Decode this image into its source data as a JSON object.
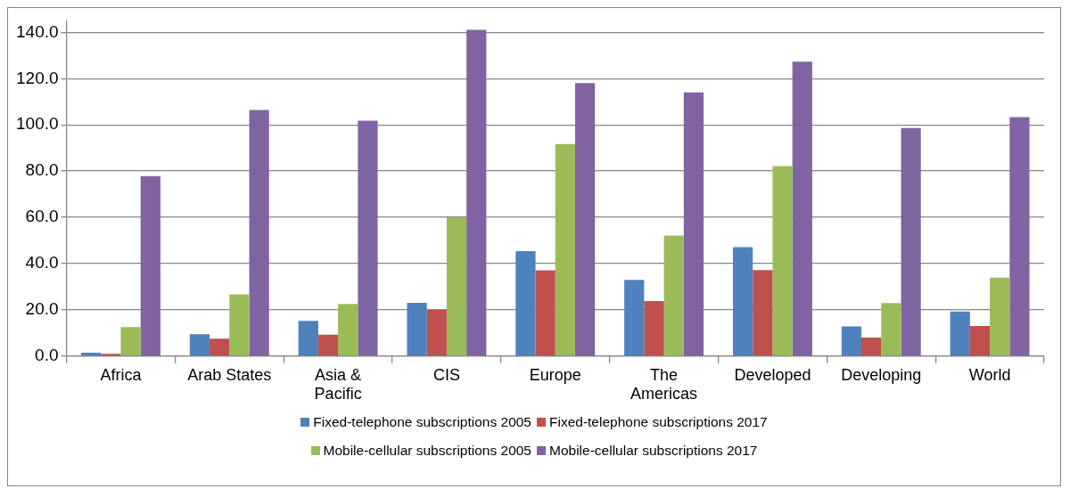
{
  "chart_data": {
    "type": "bar",
    "categories": [
      "Africa",
      "Arab States",
      "Asia & Pacific",
      "CIS",
      "Europe",
      "The Americas",
      "Developed",
      "Developing",
      "World"
    ],
    "series": [
      {
        "name": "Fixed-telephone subscriptions 2005",
        "color": "#4f81bd",
        "values": [
          1.5,
          9.5,
          15.2,
          23.0,
          45.4,
          33.0,
          47.1,
          12.8,
          19.3
        ]
      },
      {
        "name": "Fixed-telephone subscriptions 2017",
        "color": "#c0504d",
        "values": [
          1.0,
          7.5,
          9.3,
          20.0,
          37.1,
          23.8,
          37.2,
          8.0,
          13.0
        ]
      },
      {
        "name": "Mobile-cellular subscriptions 2005",
        "color": "#9bbb59",
        "values": [
          12.5,
          26.7,
          22.6,
          60.0,
          91.7,
          52.1,
          82.2,
          22.9,
          33.9
        ]
      },
      {
        "name": "Mobile-cellular subscriptions 2017",
        "color": "#8064a2",
        "values": [
          77.8,
          106.4,
          101.8,
          141.1,
          118.1,
          114.0,
          127.3,
          98.6,
          103.4
        ]
      }
    ],
    "ylim": [
      0,
      145
    ],
    "yticks": [
      {
        "value": 0,
        "label": "0.0"
      },
      {
        "value": 20,
        "label": "20.0"
      },
      {
        "value": 40,
        "label": "40.0"
      },
      {
        "value": 60,
        "label": "60.0"
      },
      {
        "value": 80,
        "label": "80.0"
      },
      {
        "value": 100,
        "label": "100.0"
      },
      {
        "value": 120,
        "label": "120.0"
      },
      {
        "value": 140,
        "label": "140.0"
      }
    ],
    "grid": "y",
    "legend": "bottom"
  }
}
